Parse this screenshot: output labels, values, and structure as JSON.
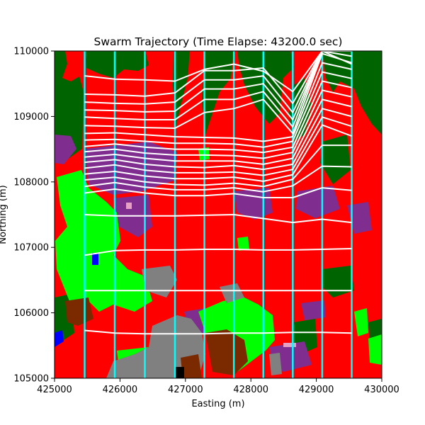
{
  "chart_data": {
    "type": "line",
    "title": "Swarm Trajectory (Time Elapse: 43200.0 sec)",
    "xlabel": "Easting (m)",
    "ylabel": "Northing (m)",
    "xlim": [
      425000,
      430000
    ],
    "ylim": [
      105000,
      110000
    ],
    "xticks": [
      425000,
      426000,
      427000,
      428000,
      429000,
      430000
    ],
    "yticks": [
      105000,
      106000,
      107000,
      108000,
      109000,
      110000
    ],
    "xtick_labels": [
      "425000",
      "426000",
      "427000",
      "428000",
      "429000",
      "430000"
    ],
    "ytick_labels": [
      "105000",
      "106000",
      "107000",
      "108000",
      "109000",
      "110000"
    ],
    "grid": false,
    "background": "land-cover classification raster",
    "land_cover_colors": {
      "red": "#ff0000",
      "dark_green": "#006400",
      "lime": "#00ff00",
      "purple": "#7f2d8f",
      "gray": "#808080",
      "brown": "#7b2a00",
      "blue": "#0000ff",
      "pink": "#e6a0c4",
      "black": "#000000"
    },
    "swarm_columns": {
      "color": "#00ffff",
      "x": [
        425460,
        425920,
        426380,
        426840,
        427290,
        427740,
        428190,
        428640,
        429090,
        429540
      ]
    },
    "trajectory_color": "#ffffff",
    "trajectories": [
      [
        105730,
        105690,
        105680,
        105680,
        105680,
        105690,
        105690,
        105700,
        105700,
        105690
      ],
      [
        106340,
        106340,
        106340,
        106340,
        106340,
        106340,
        106340,
        106340,
        106340,
        106340
      ],
      [
        106880,
        106950,
        106960,
        106960,
        106970,
        106970,
        106960,
        106960,
        106970,
        106980
      ],
      [
        107500,
        107480,
        107480,
        107480,
        107490,
        107500,
        107440,
        107380,
        107430,
        107380
      ],
      [
        107830,
        107890,
        107830,
        107790,
        107790,
        107820,
        107760,
        107760,
        107910,
        107870
      ],
      [
        107930,
        107990,
        107920,
        107880,
        107880,
        107910,
        107850,
        107940,
        108240,
        108230
      ],
      [
        108030,
        108070,
        108000,
        107960,
        107950,
        107980,
        107930,
        108040,
        108560,
        108560
      ],
      [
        108120,
        108160,
        108090,
        108050,
        108050,
        108070,
        108010,
        108110,
        108870,
        108700
      ],
      [
        108210,
        108260,
        108180,
        108140,
        108140,
        108150,
        108100,
        108190,
        108990,
        108850
      ],
      [
        108300,
        108340,
        108270,
        108230,
        108220,
        108250,
        108190,
        108270,
        109120,
        109000
      ],
      [
        108380,
        108420,
        108360,
        108320,
        108320,
        108320,
        108270,
        108360,
        109260,
        109150
      ],
      [
        108460,
        108500,
        108440,
        108410,
        108410,
        108400,
        108360,
        108450,
        109400,
        109300
      ],
      [
        108540,
        108580,
        108530,
        108500,
        108500,
        108490,
        108450,
        108530,
        109540,
        109440
      ],
      [
        108640,
        108650,
        108620,
        108590,
        108590,
        108580,
        108530,
        108620,
        109680,
        109580
      ],
      [
        108740,
        108750,
        108720,
        108690,
        108680,
        108670,
        108620,
        108690,
        109820,
        109720
      ],
      [
        108860,
        108850,
        108830,
        108820,
        109060,
        109120,
        109260,
        108740,
        109960,
        109820
      ],
      [
        108990,
        108970,
        108950,
        108950,
        109260,
        109260,
        109380,
        108840,
        110000,
        109920
      ],
      [
        109100,
        109090,
        109070,
        109080,
        109420,
        109420,
        109500,
        108950,
        110000,
        110000
      ],
      [
        109220,
        109200,
        109190,
        109220,
        109560,
        109560,
        109620,
        109060,
        110000,
        110000
      ],
      [
        109340,
        109330,
        109310,
        109360,
        109700,
        109700,
        109740,
        109200,
        110000,
        110000
      ],
      [
        109620,
        109570,
        109560,
        109540,
        109720,
        109800,
        109690,
        109380,
        110000,
        109800
      ]
    ]
  }
}
